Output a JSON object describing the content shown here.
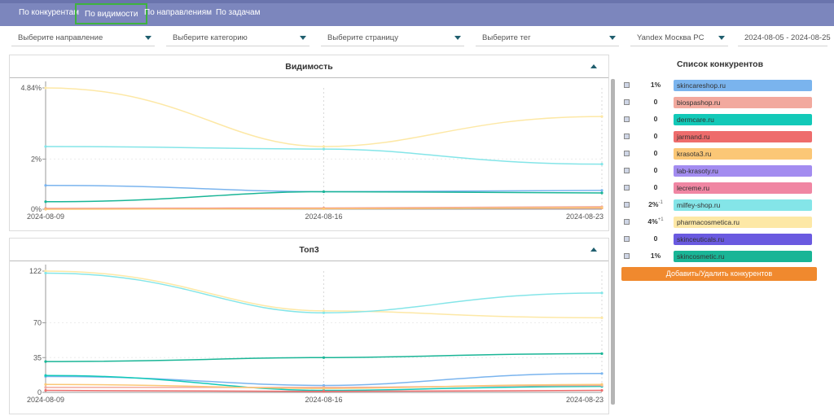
{
  "nav": {
    "tabs": [
      "По конкурентам",
      "По видимости",
      "По направлениям",
      "По задачам"
    ],
    "active": 1
  },
  "filters": {
    "direction": "Выберите направление",
    "category": "Выберите категорию",
    "page": "Выберите страницу",
    "tag": "Выберите тег",
    "engine": "Yandex Москва PC",
    "date_range": "2024-08-05 - 2024-08-25"
  },
  "visibility_panel": {
    "title": "Видимость"
  },
  "top3_panel": {
    "title": "Топ3"
  },
  "competitors": {
    "title": "Список конкурентов",
    "add_button": "Добавить/Удалить конкурентов",
    "items": [
      {
        "value": "1%",
        "delta": "",
        "name": "skincareshop.ru",
        "color": "#7ab4ee"
      },
      {
        "value": "0",
        "delta": "",
        "name": "biospashop.ru",
        "color": "#f2a99e"
      },
      {
        "value": "0",
        "delta": "",
        "name": "dermcare.ru",
        "color": "#12c9b8"
      },
      {
        "value": "0",
        "delta": "",
        "name": "jarmand.ru",
        "color": "#ee6c6c"
      },
      {
        "value": "0",
        "delta": "",
        "name": "krasota3.ru",
        "color": "#fbc776"
      },
      {
        "value": "0",
        "delta": "",
        "name": "lab-krasoty.ru",
        "color": "#a38cf0"
      },
      {
        "value": "0",
        "delta": "",
        "name": "lecreme.ru",
        "color": "#f086a3"
      },
      {
        "value": "2%",
        "delta": "-1",
        "name": "milfey-shop.ru",
        "color": "#84e5e8"
      },
      {
        "value": "4%",
        "delta": "+1",
        "name": "pharmacosmetica.ru",
        "color": "#fde8a6"
      },
      {
        "value": "0",
        "delta": "",
        "name": "skinceuticals.ru",
        "color": "#6a5ae0"
      },
      {
        "value": "1%",
        "delta": "",
        "name": "skincosmetic.ru",
        "color": "#19b596"
      }
    ]
  },
  "chart_data": [
    {
      "type": "line",
      "title": "Видимость",
      "x": [
        "2024-08-09",
        "2024-08-16",
        "2024-08-23"
      ],
      "y_ticks": [
        "4.84%",
        "2%",
        "0%"
      ],
      "ylim": [
        0,
        4.84
      ],
      "grid": true,
      "series": [
        {
          "name": "pharmacosmetica.ru",
          "color": "#fde8a6",
          "values": [
            4.84,
            2.5,
            3.7
          ]
        },
        {
          "name": "milfey-shop.ru",
          "color": "#84e5e8",
          "values": [
            2.5,
            2.4,
            1.8
          ]
        },
        {
          "name": "skincareshop.ru",
          "color": "#7ab4ee",
          "values": [
            0.95,
            0.7,
            0.75
          ]
        },
        {
          "name": "skincosmetic.ru",
          "color": "#19b596",
          "values": [
            0.3,
            0.7,
            0.65
          ]
        },
        {
          "name": "biospashop.ru",
          "color": "#f2a99e",
          "values": [
            0.03,
            0.05,
            0.1
          ]
        },
        {
          "name": "jarmand.ru",
          "color": "#ee6c6c",
          "values": [
            0.02,
            0.03,
            0.05
          ]
        },
        {
          "name": "krasota3.ru",
          "color": "#fbc776",
          "values": [
            0.0,
            0.02,
            0.06
          ]
        }
      ]
    },
    {
      "type": "line",
      "title": "Топ3",
      "x": [
        "2024-08-09",
        "2024-08-16",
        "2024-08-23"
      ],
      "y_ticks": [
        "122",
        "70",
        "35",
        "0"
      ],
      "ylim": [
        0,
        122
      ],
      "grid": true,
      "series": [
        {
          "name": "pharmacosmetica.ru",
          "color": "#fde8a6",
          "values": [
            122,
            82,
            75
          ]
        },
        {
          "name": "milfey-shop.ru",
          "color": "#84e5e8",
          "values": [
            120,
            80,
            100
          ]
        },
        {
          "name": "skincosmetic.ru",
          "color": "#19b596",
          "values": [
            31,
            35,
            39
          ]
        },
        {
          "name": "skincareshop.ru",
          "color": "#7ab4ee",
          "values": [
            16,
            7,
            19
          ]
        },
        {
          "name": "dermcare.ru",
          "color": "#12c9b8",
          "values": [
            17,
            2,
            6
          ]
        },
        {
          "name": "biospashop.ru",
          "color": "#f2a99e",
          "values": [
            5,
            5,
            7
          ]
        },
        {
          "name": "krasota3.ru",
          "color": "#fbc776",
          "values": [
            8,
            4,
            8
          ]
        },
        {
          "name": "jarmand.ru",
          "color": "#ee6c6c",
          "values": [
            2,
            1,
            2
          ]
        }
      ]
    }
  ]
}
